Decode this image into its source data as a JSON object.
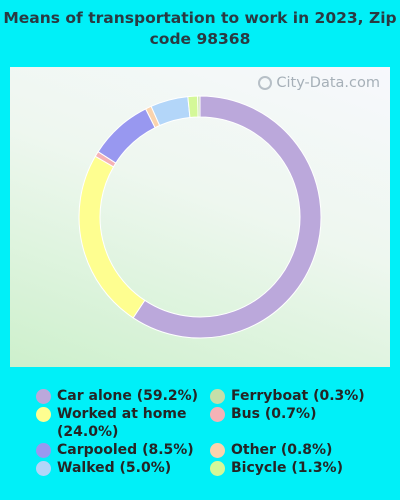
{
  "chart_data": {
    "type": "pie",
    "title": "Means of transportation to work in 2023, Zip code 98368",
    "watermark": "City-Data.com",
    "slices": [
      {
        "label": "Car alone (59.2%)",
        "value": 59.2,
        "color": "#bba8db"
      },
      {
        "label": "Worked at home (24.0%)",
        "value": 24.0,
        "color": "#fefe90"
      },
      {
        "label": "Bus (0.7%)",
        "value": 0.7,
        "color": "#f5b2b6"
      },
      {
        "label": "Carpooled (8.5%)",
        "value": 8.5,
        "color": "#9898f0"
      },
      {
        "label": "Other (0.8%)",
        "value": 0.8,
        "color": "#fbd3ad"
      },
      {
        "label": "Walked (5.0%)",
        "value": 5.0,
        "color": "#b3d6f9"
      },
      {
        "label": "Bicycle (1.3%)",
        "value": 1.3,
        "color": "#d4f898"
      },
      {
        "label": "Ferryboat (0.3%)",
        "value": 0.3,
        "color": "#c5dfa9"
      }
    ],
    "legend_left": [
      {
        "label": "Car alone (59.2%)",
        "color": "#bba8db"
      },
      {
        "label": "Worked at home (24.0%)",
        "color": "#fefe90"
      },
      {
        "label": "Carpooled (8.5%)",
        "color": "#9898f0"
      },
      {
        "label": "Walked (5.0%)",
        "color": "#b3d6f9"
      }
    ],
    "legend_right": [
      {
        "label": "Ferryboat (0.3%)",
        "color": "#c5dfa9"
      },
      {
        "label": "Bus (0.7%)",
        "color": "#f5b2b6"
      },
      {
        "label": "Other (0.8%)",
        "color": "#fbd3ad"
      },
      {
        "label": "Bicycle (1.3%)",
        "color": "#d4f898"
      }
    ]
  }
}
